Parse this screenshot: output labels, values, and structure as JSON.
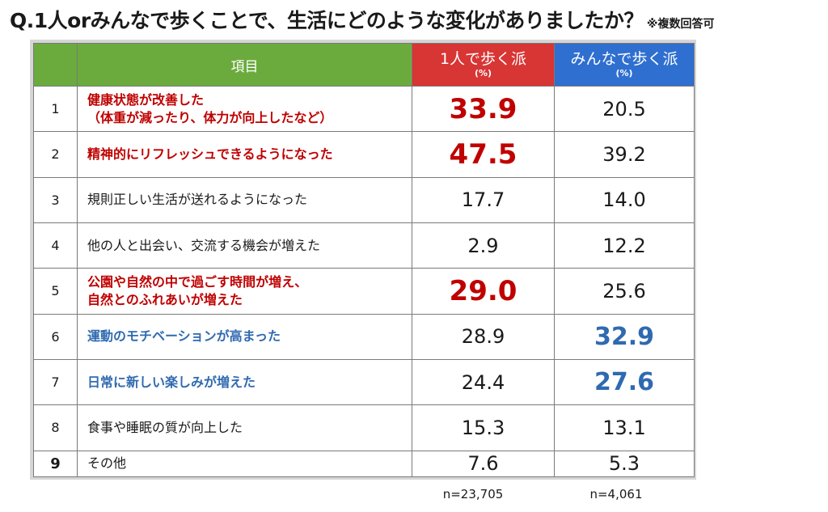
{
  "title": {
    "main": "Q.1人orみんなで歩くことで、生活にどのような変化がありましたか？",
    "note": "※複数回答可"
  },
  "header": {
    "item": "項目",
    "solo_label": "1人で歩く派",
    "solo_unit": "(%)",
    "group_label": "みんなで歩く派",
    "group_unit": "(%)"
  },
  "colors": {
    "header_green": "#6bab3e",
    "solo_red": "#d83535",
    "group_blue": "#2f6fd0",
    "highlight_red": "#c00000",
    "highlight_blue": "#2f6ab0"
  },
  "chart_data": {
    "type": "table",
    "columns": [
      "項目",
      "1人で歩く派 (%)",
      "みんなで歩く派 (%)"
    ],
    "rows": [
      {
        "no": "1",
        "item_line1": "健康状態が改善した",
        "item_line2": "（体重が減ったり、体力が向上したなど）",
        "solo": "33.9",
        "group": "20.5",
        "item_style": "red",
        "solo_style": "hl-red",
        "group_style": ""
      },
      {
        "no": "2",
        "item_line1": "精神的にリフレッシュできるようになった",
        "item_line2": "",
        "solo": "47.5",
        "group": "39.2",
        "item_style": "red",
        "solo_style": "hl-red",
        "group_style": ""
      },
      {
        "no": "3",
        "item_line1": "規則正しい生活が送れるようになった",
        "item_line2": "",
        "solo": "17.7",
        "group": "14.0",
        "item_style": "",
        "solo_style": "",
        "group_style": ""
      },
      {
        "no": "4",
        "item_line1": "他の人と出会い、交流する機会が増えた",
        "item_line2": "",
        "solo": "2.9",
        "group": "12.2",
        "item_style": "",
        "solo_style": "",
        "group_style": ""
      },
      {
        "no": "5",
        "item_line1": "公園や自然の中で過ごす時間が増え、",
        "item_line2": "自然とのふれあいが増えた",
        "solo": "29.0",
        "group": "25.6",
        "item_style": "red",
        "solo_style": "hl-red",
        "group_style": ""
      },
      {
        "no": "6",
        "item_line1": "運動のモチベーションが高まった",
        "item_line2": "",
        "solo": "28.9",
        "group": "32.9",
        "item_style": "blue",
        "solo_style": "",
        "group_style": "hl-blue"
      },
      {
        "no": "7",
        "item_line1": "日常に新しい楽しみが増えた",
        "item_line2": "",
        "solo": "24.4",
        "group": "27.6",
        "item_style": "blue",
        "solo_style": "",
        "group_style": "hl-blue"
      },
      {
        "no": "8",
        "item_line1": "食事や睡眠の質が向上した",
        "item_line2": "",
        "solo": "15.3",
        "group": "13.1",
        "item_style": "",
        "solo_style": "",
        "group_style": ""
      },
      {
        "no": "9",
        "item_line1": "その他",
        "item_line2": "",
        "solo": "7.6",
        "group": "5.3",
        "item_style": "",
        "solo_style": "",
        "group_style": ""
      }
    ]
  },
  "footer": {
    "solo_n": "n=23,705",
    "group_n": "n=4,061"
  }
}
